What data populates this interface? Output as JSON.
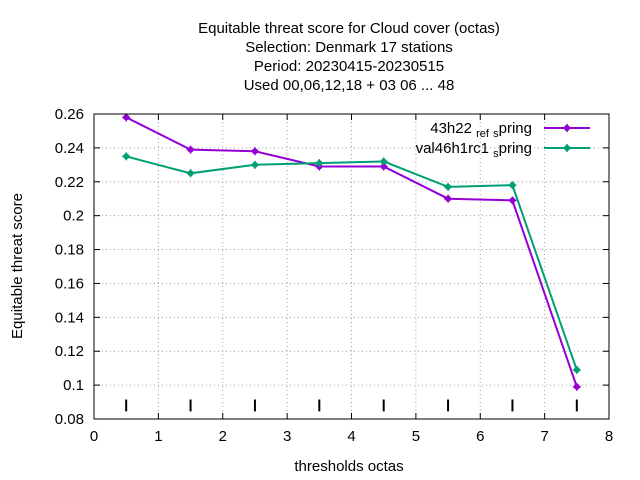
{
  "chart_data": {
    "type": "line",
    "title_lines": [
      "Equitable threat score  for Cloud cover (octas)",
      "Selection: Denmark     17 stations",
      "Period: 20230415-20230515",
      "Used  00,06,12,18  + 03 06 ... 48"
    ],
    "xlabel": "thresholds octas",
    "ylabel": "Equitable threat score",
    "xlim": [
      0,
      8
    ],
    "ylim": [
      0.08,
      0.26
    ],
    "xticks": [
      0,
      1,
      2,
      3,
      4,
      5,
      6,
      7,
      8
    ],
    "yticks": [
      0.08,
      0.1,
      0.12,
      0.14,
      0.16,
      0.18,
      0.2,
      0.22,
      0.24,
      0.26
    ],
    "xtick_labels": [
      "0",
      "1",
      "2",
      "3",
      "4",
      "5",
      "6",
      "7",
      "8"
    ],
    "ytick_labels": [
      "0.08",
      "0.1",
      "0.12",
      "0.14",
      "0.16",
      "0.18",
      "0.2",
      "0.22",
      "0.24",
      "0.26"
    ],
    "grid": true,
    "legend_position": "top-right",
    "marker_x": [
      0.5,
      1.5,
      2.5,
      3.5,
      4.5,
      5.5,
      6.5,
      7.5
    ],
    "series": [
      {
        "name": "43h22_ref_spring",
        "legend_parts": [
          "43h22",
          "ref",
          "s",
          "pring"
        ],
        "color": "#9400d3",
        "x": [
          0.5,
          1.5,
          2.5,
          3.5,
          4.5,
          5.5,
          6.5,
          7.5
        ],
        "values": [
          0.258,
          0.239,
          0.238,
          0.229,
          0.229,
          0.21,
          0.209,
          0.099
        ]
      },
      {
        "name": "val46h1rc1_spring",
        "legend_parts": [
          "val46h1rc1",
          "",
          "s",
          "pring"
        ],
        "color": "#009e73",
        "x": [
          0.5,
          1.5,
          2.5,
          3.5,
          4.5,
          5.5,
          6.5,
          7.5
        ],
        "values": [
          0.235,
          0.225,
          0.23,
          0.231,
          0.232,
          0.217,
          0.218,
          0.109
        ]
      }
    ]
  }
}
